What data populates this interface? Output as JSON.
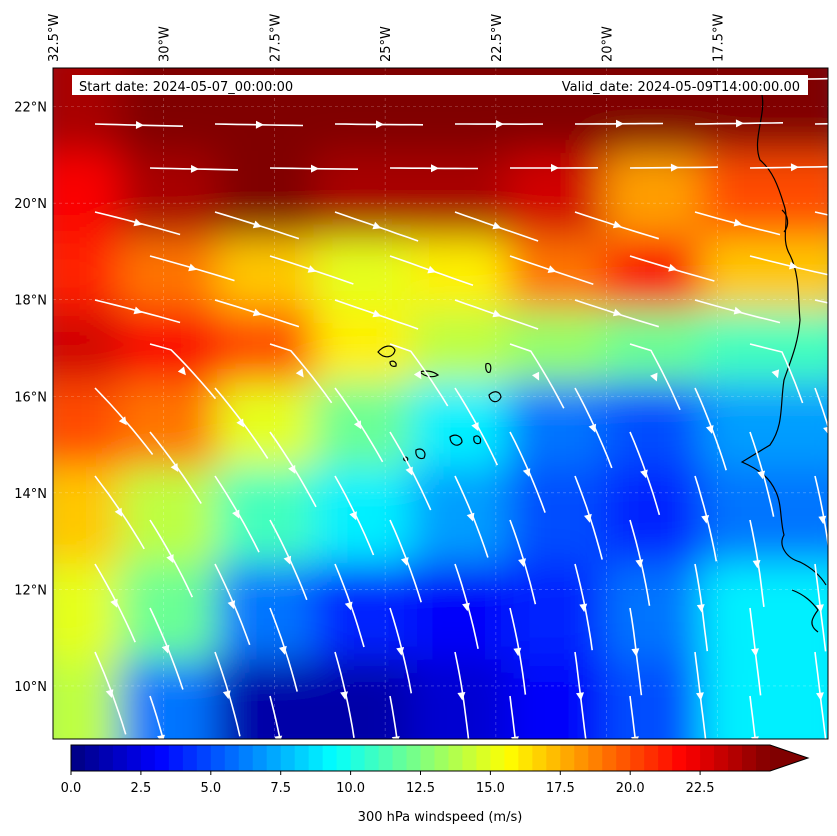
{
  "map": {
    "type": "filled-contour-map-with-streamlines",
    "start_date_label": "Start date: 2024-05-07_00:00:00",
    "valid_date_label": "Valid_date: 2024-05-09T14:00:00.00",
    "lon_range": [
      -32.5,
      -15.0
    ],
    "lat_range": [
      8.9,
      22.8
    ],
    "lon_ticks": [
      {
        "value": -32.5,
        "label": "32.5°W"
      },
      {
        "value": -30.0,
        "label": "30°W"
      },
      {
        "value": -27.5,
        "label": "27.5°W"
      },
      {
        "value": -25.0,
        "label": "25°W"
      },
      {
        "value": -22.5,
        "label": "22.5°W"
      },
      {
        "value": -20.0,
        "label": "20°W"
      },
      {
        "value": -17.5,
        "label": "17.5°W"
      }
    ],
    "lat_ticks": [
      {
        "value": 22,
        "label": "22°N"
      },
      {
        "value": 20,
        "label": "20°N"
      },
      {
        "value": 18,
        "label": "18°N"
      },
      {
        "value": 16,
        "label": "16°N"
      },
      {
        "value": 14,
        "label": "14°N"
      },
      {
        "value": 12,
        "label": "12°N"
      },
      {
        "value": 10,
        "label": "10°N"
      }
    ],
    "gridlines": true,
    "streamline_color": "#ffffff",
    "coastline_color": "#000000",
    "features": [
      "Cabo Verde islands",
      "West African coastline"
    ]
  },
  "colorbar": {
    "label": "300 hPa windspeed (m/s)",
    "colormap": "jet",
    "min": 0,
    "max": 25,
    "extend": "max",
    "ticks": [
      {
        "value": 0.0,
        "label": "0.0"
      },
      {
        "value": 2.5,
        "label": "2.5"
      },
      {
        "value": 5.0,
        "label": "5.0"
      },
      {
        "value": 7.5,
        "label": "7.5"
      },
      {
        "value": 10.0,
        "label": "10.0"
      },
      {
        "value": 12.5,
        "label": "12.5"
      },
      {
        "value": 15.0,
        "label": "15.0"
      },
      {
        "value": 17.5,
        "label": "17.5"
      },
      {
        "value": 20.0,
        "label": "20.0"
      },
      {
        "value": 22.5,
        "label": "22.5"
      }
    ]
  },
  "wind_field": [
    {
      "lat": 22.0,
      "speeds": [
        24,
        25,
        25,
        25,
        25,
        25,
        25,
        25
      ]
    },
    {
      "lat": 20.0,
      "speeds": [
        22,
        24,
        25,
        24,
        24,
        23,
        18,
        20
      ]
    },
    {
      "lat": 18.5,
      "speeds": [
        21,
        19,
        17,
        15,
        16,
        19,
        22,
        17
      ]
    },
    {
      "lat": 17.0,
      "speeds": [
        23,
        22,
        20,
        16,
        14,
        13,
        12,
        11
      ]
    },
    {
      "lat": 15.5,
      "speeds": [
        20,
        19,
        15,
        12,
        9,
        6,
        5,
        7
      ]
    },
    {
      "lat": 13.5,
      "speeds": [
        17,
        14,
        11,
        9,
        7,
        5,
        4,
        6
      ]
    },
    {
      "lat": 11.5,
      "speeds": [
        15,
        12,
        6,
        4,
        3,
        4,
        6,
        9
      ]
    },
    {
      "lat": 9.5,
      "speeds": [
        14,
        6,
        1,
        1,
        2,
        3,
        5,
        9
      ]
    }
  ]
}
